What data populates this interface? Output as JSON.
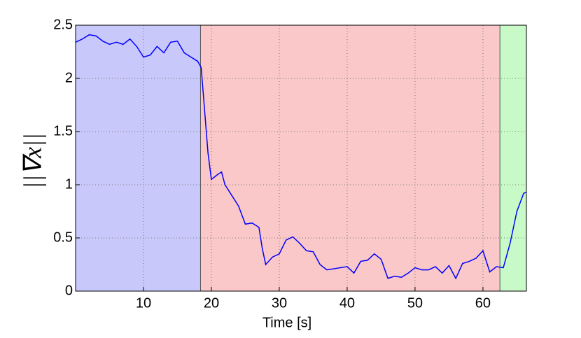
{
  "chart_data": {
    "type": "line",
    "xlabel": "Time [s]",
    "ylabel": "||∇x||",
    "x": [
      0,
      1,
      2,
      3,
      4,
      5,
      6,
      7,
      8,
      9,
      10,
      11,
      12,
      13,
      14,
      15,
      16,
      17,
      18,
      18.5,
      19,
      19.5,
      20,
      21,
      21.5,
      22,
      23,
      24,
      25,
      26,
      27,
      27.5,
      28,
      29,
      30,
      31,
      32,
      33,
      34,
      35,
      36,
      37,
      38,
      39,
      40,
      41,
      42,
      43,
      44,
      45,
      46,
      47,
      48,
      49,
      50,
      51,
      52,
      53,
      54,
      55,
      56,
      57,
      58,
      59,
      60,
      61,
      62,
      63,
      64,
      65,
      66,
      66.4
    ],
    "series": [
      {
        "name": "||∇x||",
        "color": "#0000ff",
        "values": [
          2.34,
          2.37,
          2.41,
          2.4,
          2.35,
          2.32,
          2.34,
          2.32,
          2.37,
          2.3,
          2.2,
          2.22,
          2.3,
          2.24,
          2.34,
          2.35,
          2.24,
          2.2,
          2.16,
          2.1,
          1.7,
          1.3,
          1.05,
          1.1,
          1.12,
          1.0,
          0.9,
          0.8,
          0.63,
          0.64,
          0.6,
          0.4,
          0.25,
          0.32,
          0.35,
          0.48,
          0.51,
          0.45,
          0.38,
          0.37,
          0.25,
          0.2,
          0.21,
          0.22,
          0.23,
          0.17,
          0.28,
          0.29,
          0.35,
          0.3,
          0.12,
          0.14,
          0.13,
          0.17,
          0.22,
          0.2,
          0.2,
          0.23,
          0.17,
          0.24,
          0.12,
          0.26,
          0.28,
          0.31,
          0.38,
          0.18,
          0.23,
          0.22,
          0.45,
          0.75,
          0.92,
          0.93
        ]
      }
    ],
    "regions": [
      {
        "start": 0,
        "end": 18.4,
        "color": "#c8c8fa"
      },
      {
        "start": 18.4,
        "end": 62.5,
        "color": "#fac8c8"
      },
      {
        "start": 62.5,
        "end": 66.4,
        "color": "#c8fac8"
      }
    ],
    "xlim": [
      0,
      66.4
    ],
    "ylim": [
      0,
      2.5
    ],
    "xticks": [
      10,
      20,
      30,
      40,
      50,
      60
    ],
    "yticks": [
      0,
      0.5,
      1,
      1.5,
      2,
      2.5
    ],
    "grid": true
  }
}
